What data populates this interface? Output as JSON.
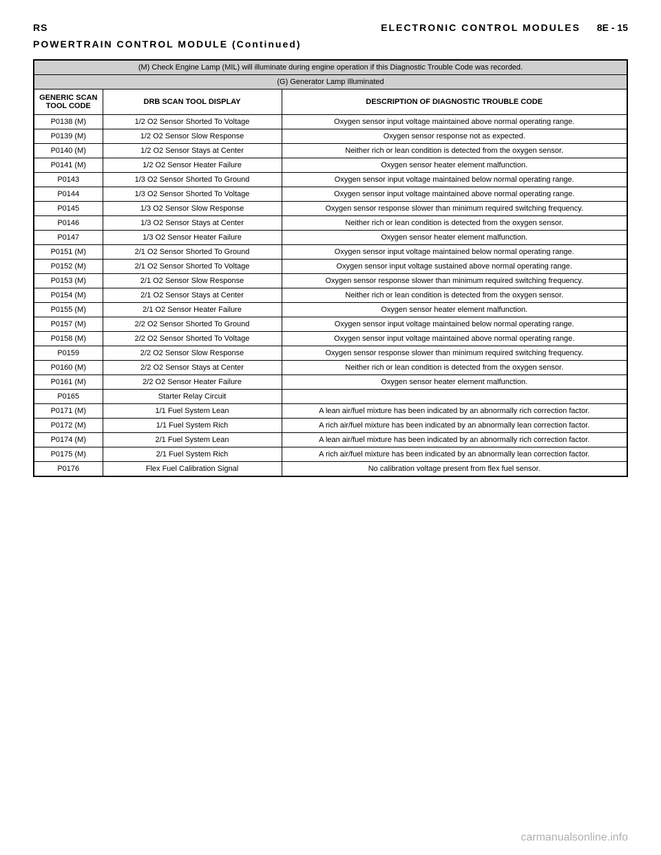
{
  "header": {
    "left_code": "RS",
    "section_title": "ELECTRONIC CONTROL MODULES",
    "page_ref": "8E - 15",
    "subtitle": "POWERTRAIN CONTROL MODULE (Continued)"
  },
  "notes": {
    "note_m": "(M) Check Engine Lamp (MIL) will illuminate during engine operation if this Diagnostic Trouble Code was recorded.",
    "note_g": "(G) Generator Lamp Illuminated"
  },
  "columns": {
    "code": "GENERIC SCAN TOOL CODE",
    "display": "DRB SCAN TOOL DISPLAY",
    "description": "DESCRIPTION OF DIAGNOSTIC TROUBLE CODE"
  },
  "rows": [
    {
      "code": "P0138 (M)",
      "display": "1/2 O2 Sensor Shorted To Voltage",
      "desc": "Oxygen sensor input voltage maintained above normal operating range."
    },
    {
      "code": "P0139 (M)",
      "display": "1/2 O2 Sensor Slow Response",
      "desc": "Oxygen sensor response not as expected."
    },
    {
      "code": "P0140 (M)",
      "display": "1/2 O2 Sensor Stays at Center",
      "desc": "Neither rich or lean condition is detected from the oxygen sensor."
    },
    {
      "code": "P0141 (M)",
      "display": "1/2 O2 Sensor Heater Failure",
      "desc": "Oxygen sensor heater element malfunction."
    },
    {
      "code": "P0143",
      "display": "1/3 O2 Sensor Shorted To Ground",
      "desc": "Oxygen sensor input voltage maintained below normal operating range."
    },
    {
      "code": "P0144",
      "display": "1/3 O2 Sensor Shorted To Voltage",
      "desc": "Oxygen sensor input voltage maintained above normal operating range."
    },
    {
      "code": "P0145",
      "display": "1/3 O2 Sensor Slow Response",
      "desc": "Oxygen sensor response slower than minimum required switching frequency."
    },
    {
      "code": "P0146",
      "display": "1/3 O2 Sensor Stays at Center",
      "desc": "Neither rich or lean condition is detected from the oxygen sensor."
    },
    {
      "code": "P0147",
      "display": "1/3 O2 Sensor Heater Failure",
      "desc": "Oxygen sensor heater element malfunction."
    },
    {
      "code": "P0151 (M)",
      "display": "2/1 O2 Sensor Shorted To Ground",
      "desc": "Oxygen sensor input voltage maintained below normal operating range."
    },
    {
      "code": "P0152 (M)",
      "display": "2/1 O2 Sensor Shorted To Voltage",
      "desc": "Oxygen sensor input voltage sustained above normal operating range."
    },
    {
      "code": "P0153 (M)",
      "display": "2/1 O2 Sensor Slow Response",
      "desc": "Oxygen sensor response slower than minimum required switching frequency."
    },
    {
      "code": "P0154 (M)",
      "display": "2/1 O2 Sensor Stays at Center",
      "desc": "Neither rich or lean condition is detected from the oxygen sensor."
    },
    {
      "code": "P0155 (M)",
      "display": "2/1 O2 Sensor Heater Failure",
      "desc": "Oxygen sensor heater element malfunction."
    },
    {
      "code": "P0157 (M)",
      "display": "2/2 O2 Sensor Shorted To Ground",
      "desc": "Oxygen sensor input voltage maintained below normal operating range."
    },
    {
      "code": "P0158 (M)",
      "display": "2/2 O2 Sensor Shorted To Voltage",
      "desc": "Oxygen sensor input voltage maintained above normal operating range."
    },
    {
      "code": "P0159",
      "display": "2/2 O2 Sensor Slow Response",
      "desc": "Oxygen sensor response slower than minimum required switching frequency."
    },
    {
      "code": "P0160 (M)",
      "display": "2/2 O2 Sensor Stays at Center",
      "desc": "Neither rich or lean condition is detected from the oxygen sensor."
    },
    {
      "code": "P0161 (M)",
      "display": "2/2 O2 Sensor Heater Failure",
      "desc": "Oxygen sensor heater element malfunction."
    },
    {
      "code": "P0165",
      "display": "Starter Relay Circuit",
      "desc": ""
    },
    {
      "code": "P0171 (M)",
      "display": "1/1 Fuel System Lean",
      "desc": "A lean air/fuel mixture has been indicated by an abnormally rich correction factor."
    },
    {
      "code": "P0172 (M)",
      "display": "1/1 Fuel System Rich",
      "desc": "A rich air/fuel mixture has been indicated by an abnormally lean correction factor."
    },
    {
      "code": "P0174 (M)",
      "display": "2/1 Fuel System Lean",
      "desc": "A lean air/fuel mixture has been indicated by an abnormally rich correction factor."
    },
    {
      "code": "P0175 (M)",
      "display": "2/1 Fuel System Rich",
      "desc": "A rich air/fuel mixture has been indicated by an abnormally lean correction factor."
    },
    {
      "code": "P0176",
      "display": "Flex Fuel Calibration Signal",
      "desc": "No calibration voltage present from flex fuel sensor."
    }
  ],
  "watermark": "carmanualsonline.info"
}
